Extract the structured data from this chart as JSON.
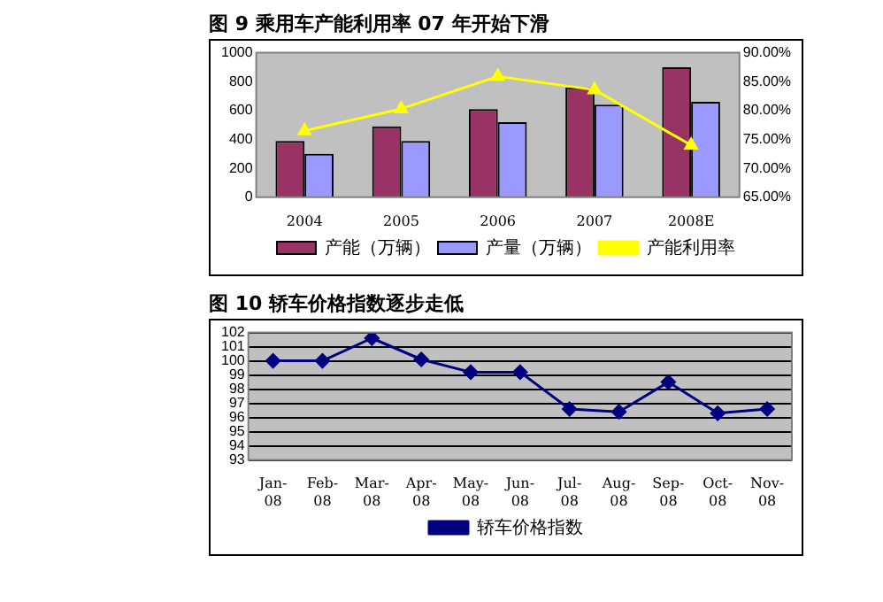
{
  "chart_data": [
    {
      "type": "bar",
      "title": "图 9 乘用车产能利用率 07 年开始下滑",
      "categories": [
        "2004",
        "2005",
        "2006",
        "2007",
        "2008E"
      ],
      "series": [
        {
          "name": "产能（万辆）",
          "color": "#993366",
          "values": [
            390,
            490,
            610,
            760,
            900
          ]
        },
        {
          "name": "产量（万辆）",
          "color": "#9999ff",
          "values": [
            300,
            390,
            520,
            640,
            660
          ]
        },
        {
          "name": "产能利用率",
          "type": "line",
          "axis": "y2",
          "color": "#ffff00",
          "values": [
            76.5,
            80.3,
            85.9,
            83.6,
            74.0
          ]
        }
      ],
      "ylim": [
        0,
        1000
      ],
      "yticks": [
        0,
        200,
        400,
        600,
        800,
        1000
      ],
      "y2lim": [
        65,
        90
      ],
      "y2ticks": [
        {
          "value": 65,
          "label": "65.00%"
        },
        {
          "value": 70,
          "label": "70.00%"
        },
        {
          "value": 75,
          "label": "75.00%"
        },
        {
          "value": 80,
          "label": "80.00%"
        },
        {
          "value": 85,
          "label": "85.00%"
        },
        {
          "value": 90,
          "label": "90.00%"
        }
      ],
      "grid": false,
      "legend": "bottom",
      "marker": "triangle"
    },
    {
      "type": "line",
      "title": "图 10 轿车价格指数逐步走低",
      "categories": [
        "Jan-08",
        "Feb-08",
        "Mar-08",
        "Apr-08",
        "May-08",
        "Jun-08",
        "Jul-08",
        "Aug-08",
        "Sep-08",
        "Oct-08",
        "Nov-08"
      ],
      "series": [
        {
          "name": "轿车价格指数",
          "color": "#000080",
          "values": [
            100,
            100,
            101.6,
            100.1,
            99.2,
            99.2,
            96.6,
            96.4,
            98.5,
            96.3,
            96.6
          ]
        }
      ],
      "ylim": [
        93,
        102
      ],
      "yticks": [
        93,
        94,
        95,
        96,
        97,
        98,
        99,
        100,
        101,
        102
      ],
      "grid": "y",
      "legend": "bottom",
      "marker": "diamond"
    }
  ]
}
